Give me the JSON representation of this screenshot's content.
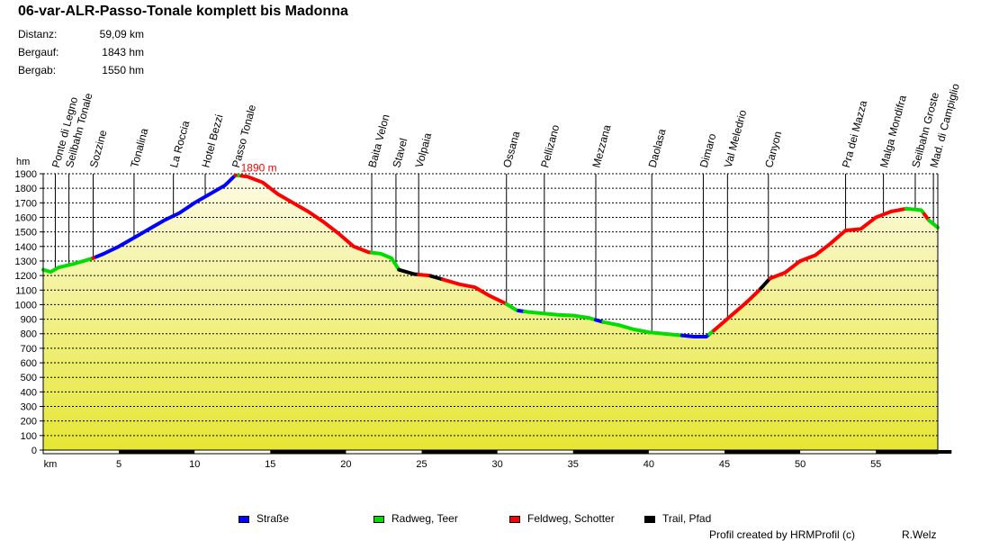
{
  "header": {
    "title": "06-var-ALR-Passo-Tonale komplett bis Madonna",
    "stats": [
      {
        "label": "Distanz:",
        "value": "59,09 km"
      },
      {
        "label": "Bergauf:",
        "value": "1843 hm"
      },
      {
        "label": "Bergab:",
        "value": "1550 hm"
      }
    ]
  },
  "chart_data": {
    "type": "area",
    "title": "06-var-ALR-Passo-Tonale komplett bis Madonna",
    "xlabel": "km",
    "ylabel": "hm",
    "xlim": [
      0,
      59.09
    ],
    "ylim": [
      0,
      1900
    ],
    "y_ticks": [
      0,
      100,
      200,
      300,
      400,
      500,
      600,
      700,
      800,
      900,
      1000,
      1100,
      1200,
      1300,
      1400,
      1500,
      1600,
      1700,
      1800,
      1900
    ],
    "x_ticks": [
      5,
      10,
      15,
      20,
      25,
      30,
      35,
      40,
      45,
      50,
      55
    ],
    "max_label": "1890 m",
    "max_point": {
      "x": 12.7,
      "y": 1890
    },
    "profile": [
      [
        0,
        1240
      ],
      [
        0.5,
        1225
      ],
      [
        1,
        1255
      ],
      [
        2,
        1280
      ],
      [
        3,
        1310
      ],
      [
        3.3,
        1320
      ],
      [
        4,
        1350
      ],
      [
        5,
        1400
      ],
      [
        6,
        1460
      ],
      [
        7,
        1520
      ],
      [
        8,
        1580
      ],
      [
        9,
        1630
      ],
      [
        10,
        1700
      ],
      [
        11,
        1760
      ],
      [
        12,
        1820
      ],
      [
        12.7,
        1890
      ],
      [
        13.5,
        1880
      ],
      [
        14.5,
        1840
      ],
      [
        15.5,
        1760
      ],
      [
        16.5,
        1700
      ],
      [
        17.5,
        1640
      ],
      [
        18.5,
        1570
      ],
      [
        19.5,
        1490
      ],
      [
        20.5,
        1400
      ],
      [
        21.5,
        1360
      ],
      [
        22.3,
        1350
      ],
      [
        23,
        1320
      ],
      [
        23.5,
        1240
      ],
      [
        24.5,
        1210
      ],
      [
        25.5,
        1200
      ],
      [
        26.5,
        1170
      ],
      [
        27.5,
        1140
      ],
      [
        28.5,
        1120
      ],
      [
        29.5,
        1060
      ],
      [
        30.5,
        1010
      ],
      [
        31.3,
        960
      ],
      [
        32,
        950
      ],
      [
        33,
        940
      ],
      [
        34,
        930
      ],
      [
        35,
        925
      ],
      [
        36,
        910
      ],
      [
        37,
        880
      ],
      [
        38,
        860
      ],
      [
        39,
        830
      ],
      [
        40,
        810
      ],
      [
        41,
        800
      ],
      [
        42,
        790
      ],
      [
        43,
        780
      ],
      [
        43.8,
        780
      ],
      [
        44.5,
        840
      ],
      [
        45.5,
        930
      ],
      [
        46.5,
        1020
      ],
      [
        47.3,
        1100
      ],
      [
        48,
        1180
      ],
      [
        48.5,
        1200
      ],
      [
        49,
        1220
      ],
      [
        50,
        1300
      ],
      [
        51,
        1340
      ],
      [
        52,
        1420
      ],
      [
        53,
        1510
      ],
      [
        54,
        1520
      ],
      [
        55,
        1600
      ],
      [
        56,
        1640
      ],
      [
        57,
        1660
      ],
      [
        58,
        1650
      ],
      [
        58.5,
        1580
      ],
      [
        59.09,
        1530
      ]
    ],
    "segments": [
      {
        "type": "Radweg",
        "from": 0,
        "to": 3.3
      },
      {
        "type": "Feldweg",
        "from": 3.3,
        "to": 3.5
      },
      {
        "type": "Straße",
        "from": 3.5,
        "to": 12.7
      },
      {
        "type": "Radweg",
        "from": 12.7,
        "to": 13.1
      },
      {
        "type": "Feldweg",
        "from": 13.1,
        "to": 21.7
      },
      {
        "type": "Radweg",
        "from": 21.7,
        "to": 23.5
      },
      {
        "type": "Trail",
        "from": 23.5,
        "to": 24.8
      },
      {
        "type": "Feldweg",
        "from": 24.8,
        "to": 25.6
      },
      {
        "type": "Trail",
        "from": 25.6,
        "to": 26.4
      },
      {
        "type": "Feldweg",
        "from": 26.4,
        "to": 30.6
      },
      {
        "type": "Radweg",
        "from": 30.6,
        "to": 31.4
      },
      {
        "type": "Straße",
        "from": 31.4,
        "to": 31.8
      },
      {
        "type": "Radweg",
        "from": 31.8,
        "to": 36.5
      },
      {
        "type": "Straße",
        "from": 36.5,
        "to": 37.0
      },
      {
        "type": "Radweg",
        "from": 37.0,
        "to": 42.2
      },
      {
        "type": "Straße",
        "from": 42.2,
        "to": 44.0
      },
      {
        "type": "Radweg",
        "from": 44.0,
        "to": 44.3
      },
      {
        "type": "Feldweg",
        "from": 44.3,
        "to": 47.4
      },
      {
        "type": "Trail",
        "from": 47.4,
        "to": 48.0
      },
      {
        "type": "Feldweg",
        "from": 48.0,
        "to": 57.0
      },
      {
        "type": "Radweg",
        "from": 57.0,
        "to": 58.2
      },
      {
        "type": "Feldweg",
        "from": 58.2,
        "to": 58.5
      },
      {
        "type": "Radweg",
        "from": 58.5,
        "to": 59.09
      }
    ],
    "waypoints": [
      {
        "name": "Ponte di Legno",
        "km": 0.8
      },
      {
        "name": "Seilbahn Tonale",
        "km": 1.7
      },
      {
        "name": "Sozzine",
        "km": 3.3
      },
      {
        "name": "Tonalina",
        "km": 6.0
      },
      {
        "name": "La Roccia",
        "km": 8.6
      },
      {
        "name": "Hotel Bezzi",
        "km": 10.7
      },
      {
        "name": "Passo Tonale",
        "km": 12.7
      },
      {
        "name": "Baita Velon",
        "km": 21.7
      },
      {
        "name": "Stavel",
        "km": 23.3
      },
      {
        "name": "Volpaia",
        "km": 24.8
      },
      {
        "name": "Ossana",
        "km": 30.6
      },
      {
        "name": "Pellizano",
        "km": 33.1
      },
      {
        "name": "Mezzana",
        "km": 36.5
      },
      {
        "name": "Daolasa",
        "km": 40.2
      },
      {
        "name": "Dimaro",
        "km": 43.6
      },
      {
        "name": "Val Meledrio",
        "km": 45.2
      },
      {
        "name": "Canyon",
        "km": 47.9
      },
      {
        "name": "Pra dei Mazza",
        "km": 53.0
      },
      {
        "name": "Malga Mondifra",
        "km": 55.5
      },
      {
        "name": "Seilbahn Groste",
        "km": 57.6
      },
      {
        "name": "Mad. di Campiglio",
        "km": 58.8
      }
    ],
    "legend": [
      {
        "key": "Straße",
        "label": "Straße",
        "color": "#0000ff"
      },
      {
        "key": "Radweg",
        "label": "Radweg, Teer",
        "color": "#00dd00"
      },
      {
        "key": "Feldweg",
        "label": "Feldweg, Schotter",
        "color": "#ff0000"
      },
      {
        "key": "Trail",
        "label": "Trail, Pfad",
        "color": "#000000"
      }
    ]
  },
  "footer": {
    "credit": "Profil created by HRMProfil (c)",
    "author": "R.Welz"
  }
}
